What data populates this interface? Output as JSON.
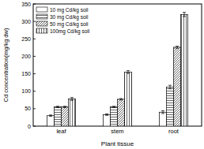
{
  "chart_data": {
    "type": "bar",
    "x_label": "Plant tissue",
    "y_label": "Cd concentration(mg/kg dw)",
    "categories": [
      "leaf",
      "stem",
      "root"
    ],
    "series": [
      {
        "name": "10 mg Cd/kg soil",
        "color": "#000000",
        "values": [
          30,
          33,
          40
        ],
        "errors": [
          2,
          2,
          4
        ]
      },
      {
        "name": "30 mg Cd/kg soil",
        "color": "#000000",
        "values": [
          55,
          55,
          112
        ],
        "errors": [
          2,
          2,
          5
        ]
      },
      {
        "name": "50 mg Cd/kg soil",
        "color": "#000000",
        "values": [
          55,
          77,
          226
        ],
        "errors": [
          2,
          2,
          3
        ]
      },
      {
        "name": "100mg Cd/kg soil",
        "color": "#000000",
        "values": [
          78,
          155,
          320
        ],
        "errors": [
          4,
          4,
          6
        ]
      }
    ],
    "ylim": [
      0,
      350
    ],
    "yticks": [
      0,
      50,
      100,
      150,
      200,
      250,
      300,
      350
    ],
    "grid": false,
    "legend": "upper left"
  }
}
